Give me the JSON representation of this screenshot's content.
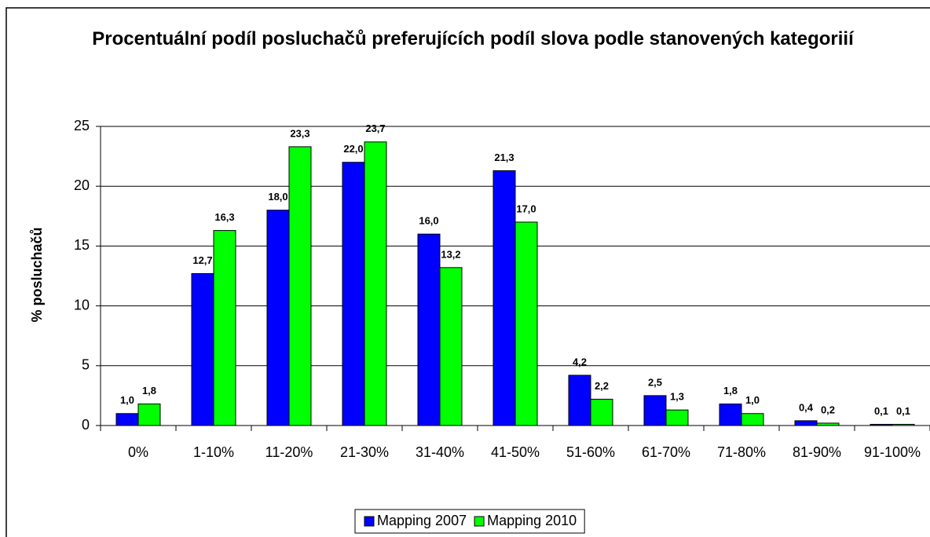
{
  "chart_data": {
    "type": "bar",
    "title": "Procentuální podíl posluchačů preferujících podíl slova podle stanovených kategoriií",
    "y_label": "% posluchačů",
    "categories": [
      "0%",
      "1-10%",
      "11-20%",
      "21-30%",
      "31-40%",
      "41-50%",
      "51-60%",
      "61-70%",
      "71-80%",
      "81-90%",
      "91-100%"
    ],
    "series": [
      {
        "name": "Mapping 2007",
        "color": "#0000ff",
        "values": [
          1.0,
          12.7,
          18.0,
          22.0,
          16.0,
          21.3,
          4.2,
          2.5,
          1.8,
          0.4,
          0.1
        ],
        "value_labels": [
          "1,0",
          "12,7",
          "18,0",
          "22,0",
          "16,0",
          "21,3",
          "4,2",
          "2,5",
          "1,8",
          "0,4",
          "0,1"
        ]
      },
      {
        "name": "Mapping 2010",
        "color": "#00ff00",
        "values": [
          1.8,
          16.3,
          23.3,
          23.7,
          13.2,
          17.0,
          2.2,
          1.3,
          1.0,
          0.2,
          0.1
        ],
        "value_labels": [
          "1,8",
          "16,3",
          "23,3",
          "23,7",
          "13,2",
          "17,0",
          "2,2",
          "1,3",
          "1,0",
          "0,2",
          "0,1"
        ]
      }
    ],
    "ylim": [
      0,
      25
    ],
    "yticks": [
      0,
      5,
      10,
      15,
      20,
      25
    ],
    "grid": true,
    "legend": "bottom"
  }
}
